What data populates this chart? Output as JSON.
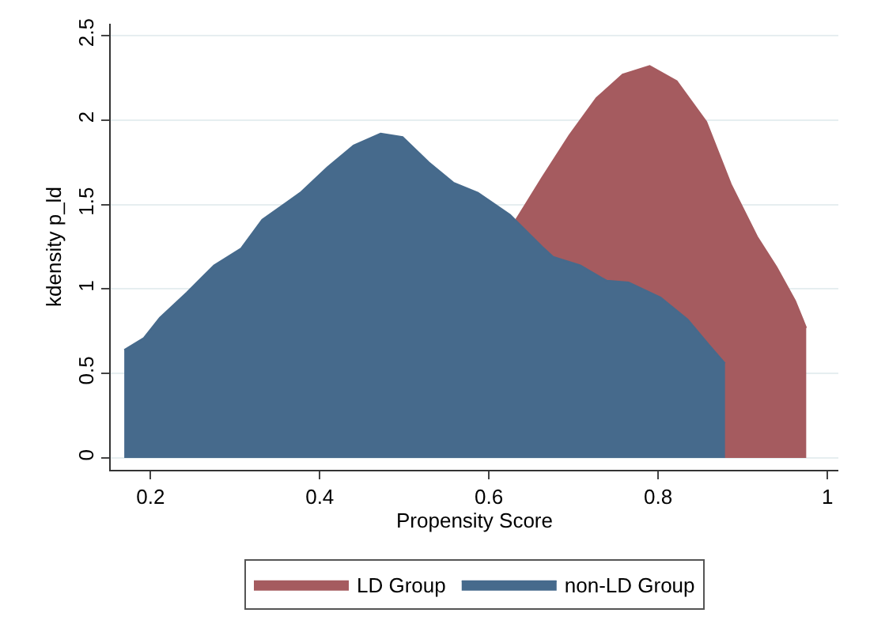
{
  "chart_data": {
    "type": "area",
    "xlabel": "Propensity Score",
    "ylabel": "kdensity p_ld",
    "xlim": [
      0.153,
      1.013
    ],
    "xticks": [
      0.2,
      0.4,
      0.6,
      0.8,
      1
    ],
    "ylim": [
      -0.07,
      2.57
    ],
    "yticks": [
      0,
      0.5,
      1,
      1.5,
      2,
      2.5
    ],
    "grid": "y",
    "legend": "bottom",
    "series": [
      {
        "name": "LD Group",
        "color": "#a55b5f",
        "x": [
          0.632,
          0.663,
          0.695,
          0.727,
          0.758,
          0.79,
          0.822,
          0.857,
          0.886,
          0.917,
          0.94,
          0.962,
          0.975
        ],
        "values": [
          1.41,
          1.66,
          1.91,
          2.13,
          2.27,
          2.32,
          2.23,
          1.99,
          1.62,
          1.31,
          1.13,
          0.93,
          0.77
        ]
      },
      {
        "name": "non-LD Group",
        "color": "#466a8c",
        "x": [
          0.169,
          0.192,
          0.211,
          0.243,
          0.275,
          0.307,
          0.332,
          0.377,
          0.409,
          0.44,
          0.472,
          0.498,
          0.529,
          0.558,
          0.587,
          0.625,
          0.663,
          0.676,
          0.708,
          0.739,
          0.765,
          0.803,
          0.835,
          0.86,
          0.879
        ],
        "values": [
          0.64,
          0.71,
          0.83,
          0.98,
          1.14,
          1.24,
          1.41,
          1.57,
          1.72,
          1.85,
          1.92,
          1.9,
          1.75,
          1.63,
          1.57,
          1.44,
          1.25,
          1.19,
          1.14,
          1.05,
          1.04,
          0.95,
          0.82,
          0.67,
          0.56
        ]
      }
    ]
  }
}
